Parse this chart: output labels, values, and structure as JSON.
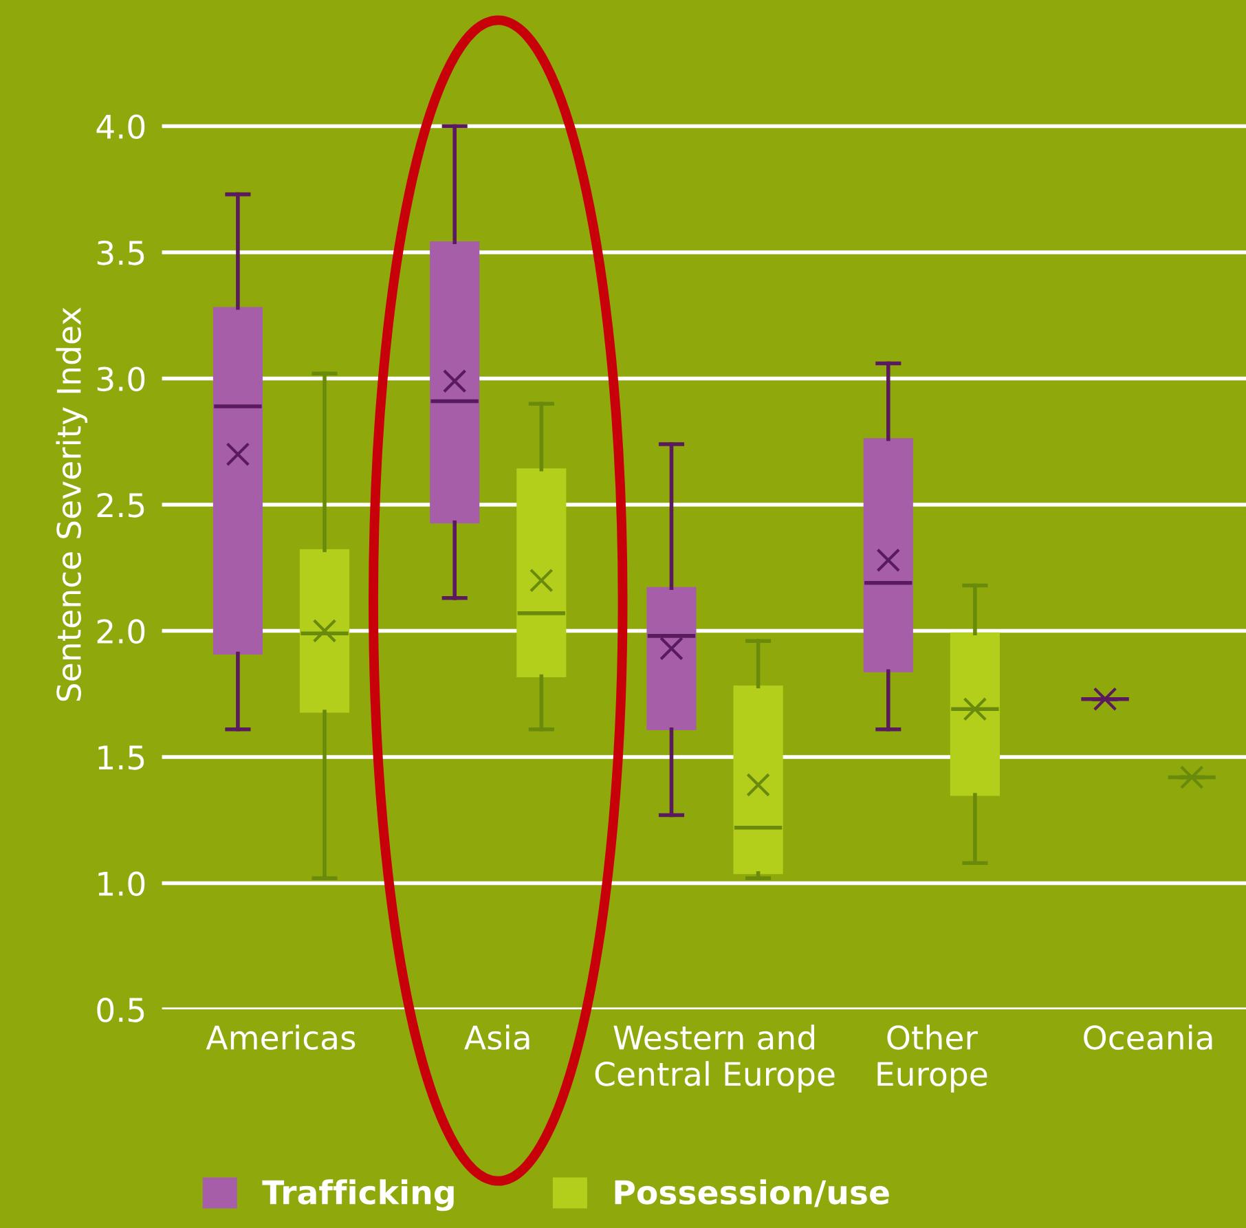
{
  "chart_data": {
    "type": "box",
    "ylabel": "Sentence Severity Index",
    "categories": [
      "Americas",
      "Asia",
      "Western and\nCentral Europe",
      "Other\nEurope",
      "Oceania"
    ],
    "ylim": [
      0.5,
      4.5
    ],
    "yticks": [
      {
        "value": 0.5,
        "label": "0.5"
      },
      {
        "value": 1.0,
        "label": "1.0"
      },
      {
        "value": 1.5,
        "label": "1.5"
      },
      {
        "value": 2.0,
        "label": "2.0"
      },
      {
        "value": 2.5,
        "label": "2.5"
      },
      {
        "value": 3.0,
        "label": "3.0"
      },
      {
        "value": 3.5,
        "label": "3.5"
      },
      {
        "value": 4.0,
        "label": "4.0"
      }
    ],
    "grid": "y",
    "legend": "bottom",
    "marker": "cross",
    "series": [
      {
        "name": "Trafficking",
        "color": "#a65ea8",
        "boxes": [
          {
            "low": 1.61,
            "q1": 1.91,
            "median": 2.89,
            "q3": 3.28,
            "high": 3.73,
            "mean": 2.7
          },
          {
            "low": 2.13,
            "q1": 2.43,
            "median": 2.91,
            "q3": 3.54,
            "high": 4.0,
            "mean": 2.99
          },
          {
            "low": 1.27,
            "q1": 1.61,
            "median": 1.98,
            "q3": 2.17,
            "high": 2.74,
            "mean": 1.93
          },
          {
            "low": 1.61,
            "q1": 1.84,
            "median": 2.19,
            "q3": 2.76,
            "high": 3.06,
            "mean": 2.28
          },
          {
            "low": 1.73,
            "q1": 1.73,
            "median": 1.73,
            "q3": 1.73,
            "high": 1.73,
            "mean": 1.73
          }
        ]
      },
      {
        "name": "Possession/use",
        "color": "#b3cf1c",
        "boxes": [
          {
            "low": 1.02,
            "q1": 1.68,
            "median": 1.99,
            "q3": 2.32,
            "high": 3.02,
            "mean": 2.0
          },
          {
            "low": 1.61,
            "q1": 1.82,
            "median": 2.07,
            "q3": 2.64,
            "high": 2.9,
            "mean": 2.2
          },
          {
            "low": 1.02,
            "q1": 1.04,
            "median": 1.22,
            "q3": 1.78,
            "high": 1.96,
            "mean": 1.39
          },
          {
            "low": 1.08,
            "q1": 1.35,
            "median": 1.69,
            "q3": 1.99,
            "high": 2.18,
            "mean": 1.69
          },
          {
            "low": 1.42,
            "q1": 1.42,
            "median": 1.42,
            "q3": 1.42,
            "high": 1.42,
            "mean": 1.42
          }
        ]
      }
    ]
  }
}
